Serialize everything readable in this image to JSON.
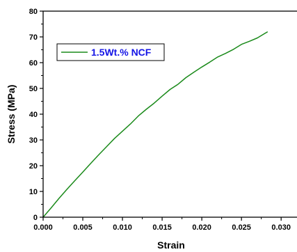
{
  "chart_data": {
    "type": "line",
    "title": "",
    "xlabel": "Strain",
    "ylabel": "Stress (MPa)",
    "xlim": [
      0,
      0.032
    ],
    "ylim": [
      0,
      80
    ],
    "x_ticks": [
      "0.000",
      "0.005",
      "0.010",
      "0.015",
      "0.020",
      "0.025",
      "0.030"
    ],
    "y_ticks": [
      "0",
      "10",
      "20",
      "30",
      "40",
      "50",
      "60",
      "70",
      "80"
    ],
    "grid": false,
    "legend_position": "top-left",
    "colors": {
      "series": "#1a8a1a",
      "legend_text": "#1414e6"
    },
    "series": [
      {
        "name": "1.5Wt.% NCF",
        "x": [
          0,
          0.001,
          0.002,
          0.003,
          0.004,
          0.005,
          0.006,
          0.007,
          0.008,
          0.009,
          0.01,
          0.011,
          0.012,
          0.013,
          0.014,
          0.015,
          0.016,
          0.017,
          0.018,
          0.019,
          0.02,
          0.021,
          0.022,
          0.023,
          0.024,
          0.025,
          0.026,
          0.027,
          0.0283
        ],
        "y": [
          0,
          3.6,
          7.3,
          10.8,
          14.2,
          17.5,
          20.9,
          24.2,
          27.4,
          30.6,
          33.4,
          36.2,
          39.3,
          41.9,
          44.3,
          47.0,
          49.6,
          51.6,
          54.2,
          56.3,
          58.3,
          60.2,
          62.2,
          63.6,
          65.2,
          67.1,
          68.3,
          69.6,
          72.0
        ]
      }
    ]
  }
}
